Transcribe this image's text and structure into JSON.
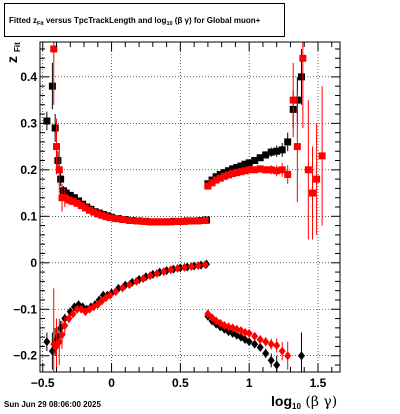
{
  "title": {
    "prefix": "Fitted  z",
    "sub1": "Fit",
    "middle": "  versus TpcTrackLength and log",
    "sub2": "10",
    "suffix": " (β  γ) for Global muon+"
  },
  "datestamp": "Sun Jun 29 08:06:00 2025",
  "axis": {
    "y_main": "z",
    "y_sub": "Fit",
    "x_main": "log",
    "x_sub": "10",
    "x_greek": " (β γ)"
  },
  "colors": {
    "series_black": "#000000",
    "series_red": "#ff0000",
    "grid": "#000000",
    "background": "#ffffff"
  },
  "chart_data": {
    "type": "scatter",
    "xlim": [
      -0.52,
      1.66
    ],
    "ylim": [
      -0.235,
      0.475
    ],
    "xticks": [
      -0.5,
      0,
      0.5,
      1,
      1.5
    ],
    "xtick_labels": [
      "−0.5",
      "0",
      "0.5",
      "1",
      "1.5"
    ],
    "yticks": [
      -0.2,
      -0.1,
      0,
      0.1,
      0.2,
      0.3,
      0.4
    ],
    "ytick_labels": [
      "−0.2",
      "−0.1",
      "0",
      "0.1",
      "0.2",
      "0.3",
      "0.4"
    ],
    "grid": true,
    "series": [
      {
        "color": "black",
        "marker": "square",
        "points": [
          [
            -0.47,
            0.305,
            0.02
          ],
          [
            -0.43,
            0.38,
            0.05
          ],
          [
            -0.41,
            0.29,
            0.03
          ],
          [
            -0.39,
            0.22,
            0.02
          ],
          [
            -0.37,
            0.18,
            0.015
          ],
          [
            -0.35,
            0.155,
            0.01
          ],
          [
            -0.33,
            0.15,
            0.008
          ],
          [
            -0.3,
            0.145,
            0.006
          ],
          [
            -0.27,
            0.14,
            0.005
          ],
          [
            -0.24,
            0.133,
            0.004
          ],
          [
            -0.21,
            0.126,
            0.004
          ],
          [
            -0.18,
            0.12,
            0.003
          ],
          [
            -0.15,
            0.115,
            0.003
          ],
          [
            -0.12,
            0.11,
            0.003
          ],
          [
            -0.09,
            0.107,
            0.003
          ],
          [
            -0.06,
            0.104,
            0.003
          ],
          [
            -0.03,
            0.101,
            0.002
          ],
          [
            0,
            0.098,
            0.002
          ],
          [
            0.05,
            0.095,
            0.002
          ],
          [
            0.1,
            0.093,
            0.002
          ],
          [
            0.15,
            0.091,
            0.002
          ],
          [
            0.2,
            0.09,
            0.002
          ],
          [
            0.25,
            0.089,
            0.002
          ],
          [
            0.3,
            0.088,
            0.002
          ],
          [
            0.35,
            0.088,
            0.002
          ],
          [
            0.4,
            0.088,
            0.002
          ],
          [
            0.45,
            0.089,
            0.002
          ],
          [
            0.5,
            0.089,
            0.002
          ],
          [
            0.55,
            0.09,
            0.002
          ],
          [
            0.6,
            0.09,
            0.002
          ],
          [
            0.65,
            0.091,
            0.002
          ],
          [
            0.69,
            0.092,
            0.002
          ],
          [
            0.7,
            0.17,
            0.003
          ],
          [
            0.73,
            0.178,
            0.003
          ],
          [
            0.76,
            0.185,
            0.003
          ],
          [
            0.79,
            0.19,
            0.003
          ],
          [
            0.82,
            0.194,
            0.003
          ],
          [
            0.85,
            0.198,
            0.003
          ],
          [
            0.88,
            0.202,
            0.003
          ],
          [
            0.91,
            0.205,
            0.004
          ],
          [
            0.94,
            0.208,
            0.004
          ],
          [
            0.97,
            0.212,
            0.005
          ],
          [
            1.0,
            0.215,
            0.006
          ],
          [
            1.04,
            0.22,
            0.006
          ],
          [
            1.08,
            0.226,
            0.007
          ],
          [
            1.12,
            0.232,
            0.008
          ],
          [
            1.16,
            0.238,
            0.01
          ],
          [
            1.2,
            0.24,
            0.012
          ],
          [
            1.24,
            0.243,
            0.015
          ],
          [
            1.28,
            0.26,
            0.02
          ],
          [
            1.32,
            0.33,
            0.04
          ],
          [
            1.35,
            0.35,
            0.05
          ],
          [
            1.38,
            0.4,
            0.06
          ]
        ]
      },
      {
        "color": "black",
        "marker": "diamond",
        "points": [
          [
            -0.47,
            -0.17,
            0.02
          ],
          [
            -0.43,
            -0.19,
            0.04
          ],
          [
            -0.41,
            -0.17,
            0.03
          ],
          [
            -0.39,
            -0.16,
            0.02
          ],
          [
            -0.37,
            -0.14,
            0.015
          ],
          [
            -0.34,
            -0.12,
            0.01
          ],
          [
            -0.3,
            -0.105,
            0.006
          ],
          [
            -0.27,
            -0.095,
            0.005
          ],
          [
            -0.24,
            -0.09,
            0.004
          ],
          [
            -0.21,
            -0.095,
            0.004
          ],
          [
            -0.18,
            -0.1,
            0.003
          ],
          [
            -0.15,
            -0.095,
            0.003
          ],
          [
            -0.12,
            -0.09,
            0.003
          ],
          [
            -0.09,
            -0.08,
            0.003
          ],
          [
            -0.06,
            -0.07,
            0.003
          ],
          [
            -0.03,
            -0.07,
            0.003
          ],
          [
            0,
            -0.065,
            0.002
          ],
          [
            0.05,
            -0.055,
            0.002
          ],
          [
            0.1,
            -0.048,
            0.002
          ],
          [
            0.15,
            -0.042,
            0.002
          ],
          [
            0.2,
            -0.036,
            0.002
          ],
          [
            0.25,
            -0.03,
            0.002
          ],
          [
            0.3,
            -0.025,
            0.002
          ],
          [
            0.35,
            -0.02,
            0.002
          ],
          [
            0.4,
            -0.017,
            0.002
          ],
          [
            0.45,
            -0.014,
            0.002
          ],
          [
            0.5,
            -0.011,
            0.002
          ],
          [
            0.55,
            -0.009,
            0.002
          ],
          [
            0.6,
            -0.007,
            0.002
          ],
          [
            0.65,
            -0.005,
            0.002
          ],
          [
            0.69,
            -0.003,
            0.002
          ],
          [
            0.7,
            -0.115,
            0.003
          ],
          [
            0.73,
            -0.125,
            0.003
          ],
          [
            0.76,
            -0.132,
            0.003
          ],
          [
            0.79,
            -0.138,
            0.003
          ],
          [
            0.82,
            -0.143,
            0.003
          ],
          [
            0.85,
            -0.148,
            0.003
          ],
          [
            0.88,
            -0.152,
            0.003
          ],
          [
            0.91,
            -0.156,
            0.004
          ],
          [
            0.94,
            -0.16,
            0.004
          ],
          [
            0.97,
            -0.165,
            0.005
          ],
          [
            1.0,
            -0.17,
            0.006
          ],
          [
            1.04,
            -0.175,
            0.007
          ],
          [
            1.08,
            -0.182,
            0.008
          ],
          [
            1.12,
            -0.195,
            0.01
          ],
          [
            1.16,
            -0.21,
            0.015
          ],
          [
            1.2,
            -0.22,
            0.02
          ],
          [
            1.38,
            -0.2,
            0.05
          ]
        ]
      },
      {
        "color": "red",
        "marker": "square",
        "points": [
          [
            -0.42,
            0.46,
            0.12
          ],
          [
            -0.4,
            0.25,
            0.06
          ],
          [
            -0.38,
            0.2,
            0.05
          ],
          [
            -0.36,
            0.14,
            0.03
          ],
          [
            -0.34,
            0.14,
            0.02
          ],
          [
            -0.31,
            0.135,
            0.01
          ],
          [
            -0.28,
            0.132,
            0.008
          ],
          [
            -0.25,
            0.128,
            0.006
          ],
          [
            -0.22,
            0.123,
            0.005
          ],
          [
            -0.19,
            0.118,
            0.004
          ],
          [
            -0.16,
            0.113,
            0.004
          ],
          [
            -0.13,
            0.109,
            0.003
          ],
          [
            -0.1,
            0.105,
            0.003
          ],
          [
            -0.07,
            0.102,
            0.003
          ],
          [
            -0.04,
            0.099,
            0.003
          ],
          [
            -0.01,
            0.097,
            0.002
          ],
          [
            0.03,
            0.095,
            0.002
          ],
          [
            0.08,
            0.093,
            0.002
          ],
          [
            0.13,
            0.091,
            0.002
          ],
          [
            0.18,
            0.09,
            0.002
          ],
          [
            0.23,
            0.089,
            0.002
          ],
          [
            0.28,
            0.088,
            0.002
          ],
          [
            0.33,
            0.088,
            0.002
          ],
          [
            0.38,
            0.088,
            0.002
          ],
          [
            0.43,
            0.088,
            0.002
          ],
          [
            0.48,
            0.089,
            0.002
          ],
          [
            0.53,
            0.089,
            0.002
          ],
          [
            0.58,
            0.09,
            0.002
          ],
          [
            0.63,
            0.09,
            0.002
          ],
          [
            0.68,
            0.091,
            0.002
          ],
          [
            0.7,
            0.165,
            0.003
          ],
          [
            0.73,
            0.172,
            0.003
          ],
          [
            0.76,
            0.178,
            0.003
          ],
          [
            0.79,
            0.182,
            0.003
          ],
          [
            0.82,
            0.186,
            0.003
          ],
          [
            0.85,
            0.189,
            0.003
          ],
          [
            0.88,
            0.192,
            0.003
          ],
          [
            0.91,
            0.194,
            0.004
          ],
          [
            0.94,
            0.196,
            0.004
          ],
          [
            0.97,
            0.198,
            0.005
          ],
          [
            1.0,
            0.2,
            0.006
          ],
          [
            1.04,
            0.2,
            0.006
          ],
          [
            1.08,
            0.202,
            0.007
          ],
          [
            1.12,
            0.2,
            0.008
          ],
          [
            1.16,
            0.2,
            0.01
          ],
          [
            1.2,
            0.198,
            0.012
          ],
          [
            1.24,
            0.2,
            0.015
          ],
          [
            1.28,
            0.19,
            0.02
          ],
          [
            1.32,
            0.35,
            0.08
          ],
          [
            1.35,
            0.25,
            0.12
          ],
          [
            1.39,
            0.44,
            0.15
          ],
          [
            1.43,
            0.2,
            0.15
          ],
          [
            1.46,
            0.15,
            0.1
          ],
          [
            1.49,
            0.18,
            0.12
          ],
          [
            1.53,
            0.23,
            0.15
          ]
        ]
      },
      {
        "color": "red",
        "marker": "diamond",
        "points": [
          [
            -0.42,
            -0.175,
            0.12
          ],
          [
            -0.4,
            -0.18,
            0.06
          ],
          [
            -0.38,
            -0.17,
            0.05
          ],
          [
            -0.36,
            -0.155,
            0.03
          ],
          [
            -0.34,
            -0.135,
            0.02
          ],
          [
            -0.31,
            -0.12,
            0.01
          ],
          [
            -0.28,
            -0.11,
            0.008
          ],
          [
            -0.25,
            -0.1,
            0.006
          ],
          [
            -0.22,
            -0.1,
            0.005
          ],
          [
            -0.19,
            -0.105,
            0.004
          ],
          [
            -0.16,
            -0.1,
            0.004
          ],
          [
            -0.13,
            -0.095,
            0.003
          ],
          [
            -0.1,
            -0.09,
            0.003
          ],
          [
            -0.07,
            -0.082,
            0.003
          ],
          [
            -0.04,
            -0.075,
            0.003
          ],
          [
            -0.01,
            -0.07,
            0.002
          ],
          [
            0.03,
            -0.062,
            0.002
          ],
          [
            0.08,
            -0.054,
            0.002
          ],
          [
            0.13,
            -0.047,
            0.002
          ],
          [
            0.18,
            -0.04,
            0.002
          ],
          [
            0.23,
            -0.034,
            0.002
          ],
          [
            0.28,
            -0.028,
            0.002
          ],
          [
            0.33,
            -0.023,
            0.002
          ],
          [
            0.38,
            -0.019,
            0.002
          ],
          [
            0.43,
            -0.015,
            0.002
          ],
          [
            0.48,
            -0.012,
            0.002
          ],
          [
            0.53,
            -0.01,
            0.002
          ],
          [
            0.58,
            -0.008,
            0.002
          ],
          [
            0.63,
            -0.006,
            0.002
          ],
          [
            0.68,
            -0.004,
            0.002
          ],
          [
            0.7,
            -0.11,
            0.003
          ],
          [
            0.73,
            -0.118,
            0.003
          ],
          [
            0.76,
            -0.125,
            0.003
          ],
          [
            0.79,
            -0.13,
            0.003
          ],
          [
            0.82,
            -0.135,
            0.003
          ],
          [
            0.85,
            -0.138,
            0.003
          ],
          [
            0.88,
            -0.14,
            0.003
          ],
          [
            0.91,
            -0.143,
            0.004
          ],
          [
            0.94,
            -0.146,
            0.004
          ],
          [
            0.97,
            -0.15,
            0.005
          ],
          [
            1.0,
            -0.152,
            0.006
          ],
          [
            1.04,
            -0.158,
            0.007
          ],
          [
            1.08,
            -0.165,
            0.008
          ],
          [
            1.12,
            -0.17,
            0.01
          ],
          [
            1.16,
            -0.175,
            0.012
          ],
          [
            1.2,
            -0.178,
            0.015
          ],
          [
            1.24,
            -0.19,
            0.02
          ],
          [
            1.28,
            -0.2,
            0.03
          ]
        ]
      }
    ]
  }
}
